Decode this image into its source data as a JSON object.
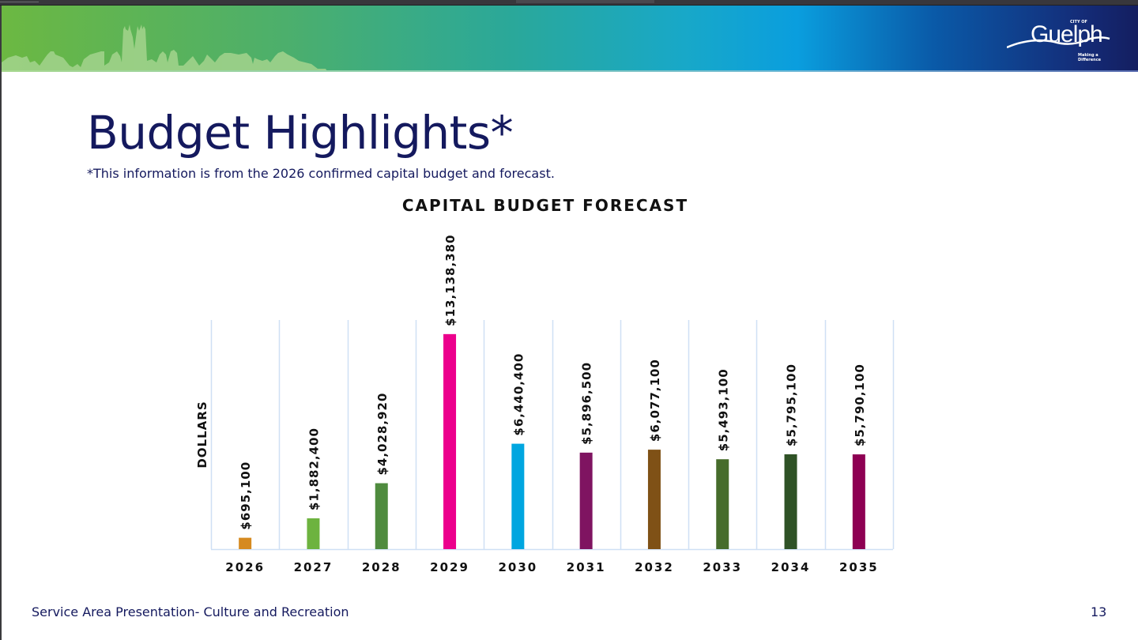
{
  "header": {
    "logo_city_prefix": "CITY OF",
    "logo_name": "Guelph",
    "logo_tagline": "Making a Difference"
  },
  "slide": {
    "title": "Budget Highlights*",
    "subtitle": "*This information is from the 2026 confirmed capital budget and forecast.",
    "footer_text": "Service Area Presentation- Culture and Recreation",
    "page_number": "13"
  },
  "chart_data": {
    "type": "bar",
    "title": "CAPITAL BUDGET FORECAST",
    "xlabel": "",
    "ylabel": "DOLLARS",
    "ylim": [
      0,
      14000000
    ],
    "grid": "vertical category separators",
    "legend": "none",
    "categories": [
      "2026",
      "2027",
      "2028",
      "2029",
      "2030",
      "2031",
      "2032",
      "2033",
      "2034",
      "2035"
    ],
    "values": [
      695100,
      1882400,
      4028920,
      13138380,
      6440400,
      5896500,
      6077100,
      5493100,
      5795100,
      5790100
    ],
    "data_labels": [
      "$695,100",
      "$1,882,400",
      "$4,028,920",
      "$13,138,380",
      "$6,440,400",
      "$5,896,500",
      "$6,077,100",
      "$5,493,100",
      "$5,795,100",
      "$5,790,100"
    ],
    "colors": [
      "#d68a20",
      "#6db33f",
      "#4f8b3e",
      "#ec008c",
      "#00a6e0",
      "#7f1461",
      "#7f5116",
      "#466c2b",
      "#2f5226",
      "#8e0053"
    ],
    "grid_color": "#cfe0f5"
  }
}
